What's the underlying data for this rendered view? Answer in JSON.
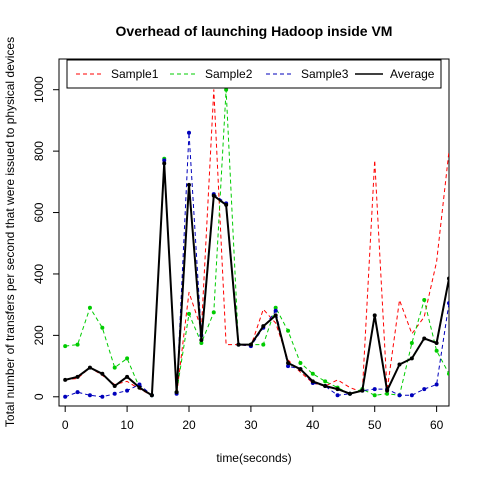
{
  "chart_data": {
    "type": "line",
    "title": "Overhead of launching Hadoop inside VM",
    "xlabel": "time(seconds)",
    "ylabel": "Total number of transfers per second that were issued to physical devices",
    "xlim": [
      -1,
      62
    ],
    "ylim": [
      -30,
      1100
    ],
    "x_ticks": [
      0,
      10,
      20,
      30,
      40,
      50,
      60
    ],
    "y_ticks": [
      0,
      200,
      400,
      600,
      800,
      1000
    ],
    "legend_position": "top",
    "x": [
      0,
      2,
      4,
      6,
      8,
      10,
      12,
      14,
      16,
      18,
      20,
      22,
      24,
      26,
      28,
      30,
      32,
      34,
      36,
      38,
      40,
      42,
      44,
      46,
      48,
      50,
      52,
      54,
      56,
      58,
      60,
      62
    ],
    "series": [
      {
        "name": "Sample1",
        "color": "#ff0000",
        "style": "dashed",
        "markers": false,
        "values": [
          55,
          60,
          95,
          70,
          40,
          50,
          25,
          5,
          760,
          5,
          340,
          220,
          1000,
          170,
          170,
          165,
          285,
          240,
          120,
          80,
          45,
          35,
          55,
          30,
          15,
          770,
          20,
          315,
          205,
          260,
          440,
          800
        ]
      },
      {
        "name": "Sample2",
        "color": "#00cc00",
        "style": "dashed",
        "markers": true,
        "values": [
          165,
          170,
          290,
          225,
          95,
          125,
          30,
          5,
          775,
          15,
          270,
          175,
          275,
          1000,
          170,
          170,
          170,
          290,
          215,
          110,
          75,
          50,
          30,
          10,
          25,
          5,
          10,
          5,
          175,
          315,
          150,
          75
        ]
      },
      {
        "name": "Sample3",
        "color": "#0000bb",
        "style": "dashed",
        "markers": true,
        "values": [
          0,
          15,
          5,
          0,
          10,
          20,
          40,
          5,
          770,
          10,
          860,
          200,
          660,
          630,
          170,
          165,
          225,
          280,
          100,
          90,
          45,
          35,
          5,
          10,
          20,
          25,
          25,
          5,
          5,
          25,
          40,
          305
        ]
      },
      {
        "name": "Average",
        "color": "#000000",
        "style": "solid",
        "markers": true,
        "values": [
          55,
          65,
          95,
          75,
          35,
          65,
          30,
          5,
          760,
          15,
          690,
          185,
          655,
          625,
          170,
          170,
          230,
          265,
          110,
          90,
          50,
          35,
          25,
          10,
          20,
          265,
          20,
          105,
          125,
          190,
          175,
          385
        ]
      }
    ]
  }
}
